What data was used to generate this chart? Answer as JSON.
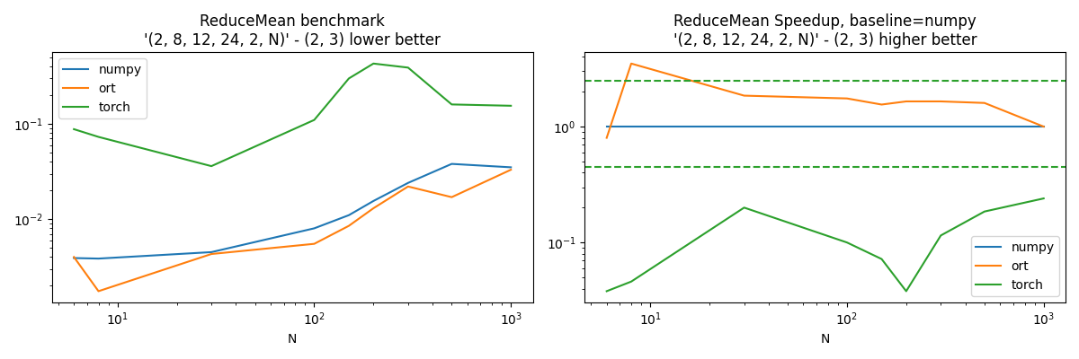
{
  "title1": "ReduceMean benchmark\n'(2, 8, 12, 24, 2, N)' - (2, 3) lower better",
  "title2": "ReduceMean Speedup, baseline=numpy\n'(2, 8, 12, 24, 2, N)' - (2, 3) higher better",
  "xlabel": "N",
  "N": [
    6,
    8,
    30,
    100,
    150,
    200,
    300,
    500,
    1000
  ],
  "numpy_bench": [
    0.0039,
    0.00385,
    0.0045,
    0.008,
    0.011,
    0.0155,
    0.024,
    0.038,
    0.035
  ],
  "ort_bench": [
    0.004,
    0.00175,
    0.0043,
    0.0055,
    0.0085,
    0.013,
    0.022,
    0.017,
    0.033
  ],
  "torch_bench": [
    0.088,
    0.073,
    0.036,
    0.11,
    0.3,
    0.43,
    0.39,
    0.16,
    0.155
  ],
  "numpy_speedup": [
    1.0,
    1.0,
    1.0,
    1.0,
    1.0,
    1.0,
    1.0,
    1.0,
    1.0
  ],
  "ort_speedup": [
    0.8,
    3.5,
    1.85,
    1.75,
    1.55,
    1.65,
    1.65,
    1.6,
    1.0
  ],
  "torch_speedup": [
    0.038,
    0.046,
    0.2,
    0.1,
    0.072,
    0.038,
    0.115,
    0.185,
    0.24
  ],
  "dashed_upper": 2.5,
  "dashed_lower": 0.45,
  "color_numpy": "#1f77b4",
  "color_ort": "#ff7f0e",
  "color_torch": "#2ca02c",
  "color_dashed": "#2ca02c"
}
